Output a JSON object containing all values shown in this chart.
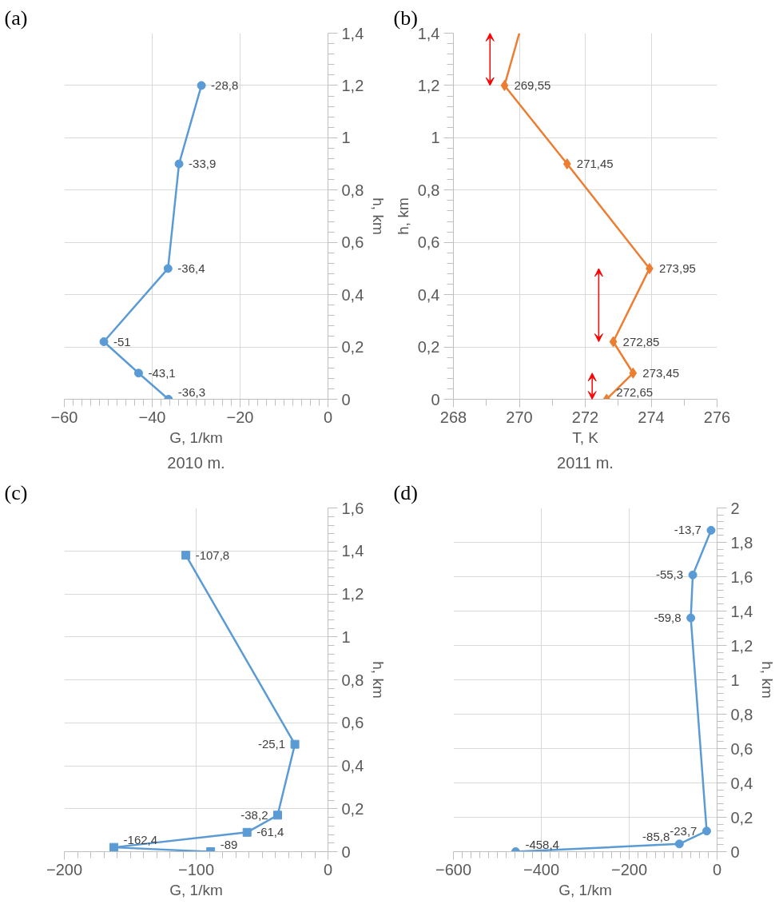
{
  "chart_data": [
    {
      "type": "line",
      "orientation": "horizontal",
      "xlabel": "G, 1/km",
      "ylabel": "h, km",
      "annotations": [
        "(a)"
      ],
      "xlim": [
        -60,
        0
      ],
      "xticks": [
        -60,
        -40,
        -20,
        0
      ],
      "ylim": [
        0,
        1.4
      ],
      "yticks": [
        {
          "value": 0,
          "label": "0"
        },
        {
          "value": 0.2,
          "label": "0,2"
        },
        {
          "value": 0.4,
          "label": "0,4"
        },
        {
          "value": 0.6,
          "label": "0,6"
        },
        {
          "value": 0.8,
          "label": "0,8"
        },
        {
          "value": 1,
          "label": "1"
        },
        {
          "value": 1.2,
          "label": "1,2"
        },
        {
          "value": 1.4,
          "label": "1,4"
        }
      ],
      "grid": true,
      "marker": "circle",
      "series": [
        {
          "color": "#5b9bd5",
          "x": [
            0,
            0.1,
            0.22,
            0.5,
            0.9,
            1.2
          ],
          "values": [
            -36.3,
            -43.1,
            -51,
            -36.4,
            -33.9,
            -28.8
          ],
          "value_labels": [
            "-36,3",
            "-43,1",
            "-51",
            "-36,4",
            "-33,9",
            "-28,8"
          ]
        }
      ]
    },
    {
      "type": "line",
      "orientation": "horizontal",
      "xlabel": "T, K",
      "ylabel": "h, km",
      "annotations": [
        "(b)"
      ],
      "xlim": [
        268,
        276
      ],
      "xticks": [
        268,
        270,
        272,
        274,
        276
      ],
      "ylim": [
        0,
        1.4
      ],
      "yticks": [
        {
          "value": 0,
          "label": "0"
        },
        {
          "value": 0.2,
          "label": "0,2"
        },
        {
          "value": 0.4,
          "label": "0,4"
        },
        {
          "value": 0.6,
          "label": "0,6"
        },
        {
          "value": 0.8,
          "label": "0,8"
        },
        {
          "value": 1,
          "label": "1"
        },
        {
          "value": 1.2,
          "label": "1,2"
        },
        {
          "value": 1.4,
          "label": "1,4"
        }
      ],
      "grid": true,
      "marker": "diamond",
      "series": [
        {
          "color": "#ed7d31",
          "x": [
            0,
            0.1,
            0.22,
            0.5,
            0.9,
            1.2
          ],
          "values": [
            272.65,
            273.45,
            272.85,
            273.95,
            271.45,
            269.55
          ],
          "value_labels": [
            "272,65",
            "273,45",
            "272,85",
            "273,95",
            "271,45",
            "269,55"
          ]
        },
        {
          "color": "#ed7d31",
          "marker": "none",
          "x": [
            1.2,
            1.4
          ],
          "values": [
            269.55,
            270.0
          ]
        }
      ]
    },
    {
      "type": "line",
      "orientation": "horizontal",
      "title": "2010 m.",
      "xlabel": "G, 1/km",
      "ylabel": "h, km",
      "annotations": [
        "(c)"
      ],
      "xlim": [
        -200,
        0
      ],
      "xticks": [
        -200,
        -100,
        0
      ],
      "ylim": [
        0,
        1.6
      ],
      "yticks": [
        {
          "value": 0,
          "label": "0"
        },
        {
          "value": 0.2,
          "label": "0,2"
        },
        {
          "value": 0.4,
          "label": "0,4"
        },
        {
          "value": 0.6,
          "label": "0,6"
        },
        {
          "value": 0.8,
          "label": "0,8"
        },
        {
          "value": 1,
          "label": "1"
        },
        {
          "value": 1.2,
          "label": "1,2"
        },
        {
          "value": 1.4,
          "label": "1,4"
        },
        {
          "value": 1.6,
          "label": "1,6"
        }
      ],
      "grid": true,
      "marker": "square",
      "series": [
        {
          "color": "#5b9bd5",
          "x": [
            0,
            0.02,
            0.09,
            0.17,
            0.5,
            1.38
          ],
          "values": [
            -89,
            -162.4,
            -61.4,
            -38.2,
            -25.1,
            -107.8
          ],
          "value_labels": [
            "-89",
            "-162,4",
            "-61,4",
            "-38,2",
            "-25,1",
            "-107,8"
          ]
        }
      ]
    },
    {
      "type": "line",
      "orientation": "horizontal",
      "title": "2011 m.",
      "xlabel": "G, 1/km",
      "ylabel": "h, km",
      "annotations": [
        "(d)"
      ],
      "xlim": [
        -600,
        0
      ],
      "xticks": [
        -600,
        -400,
        -200,
        0
      ],
      "ylim": [
        0,
        2
      ],
      "yticks": [
        {
          "value": 0,
          "label": "0"
        },
        {
          "value": 0.2,
          "label": "0,2"
        },
        {
          "value": 0.4,
          "label": "0,4"
        },
        {
          "value": 0.6,
          "label": "0,6"
        },
        {
          "value": 0.8,
          "label": "0,8"
        },
        {
          "value": 1,
          "label": "1"
        },
        {
          "value": 1.2,
          "label": "1,2"
        },
        {
          "value": 1.4,
          "label": "1,4"
        },
        {
          "value": 1.6,
          "label": "1,6"
        },
        {
          "value": 1.8,
          "label": "1,8"
        },
        {
          "value": 2,
          "label": "2"
        }
      ],
      "grid": true,
      "marker": "circle",
      "series": [
        {
          "color": "#5b9bd5",
          "x": [
            0,
            0.045,
            0.12,
            1.36,
            1.61,
            1.87
          ],
          "values": [
            -458.4,
            -85.8,
            -23.7,
            -59.8,
            -55.3,
            -13.7
          ],
          "value_labels": [
            "-458,4",
            "-85,8",
            "-23,7",
            "-59,8",
            "-55,3",
            "-13,7"
          ]
        }
      ]
    }
  ]
}
